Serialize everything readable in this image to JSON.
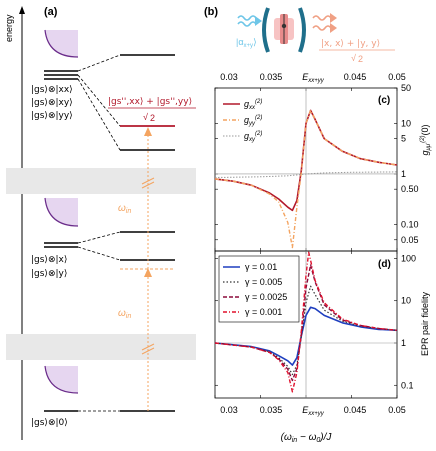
{
  "panel_a": {
    "label": "(a)",
    "axis_label": "energy",
    "omega_label": "ω",
    "omega_sub": "in",
    "states": {
      "xx": "|gs⟩⊗|xx⟩",
      "xy": "|gs⟩⊗|xy⟩",
      "yy": "|gs⟩⊗|yy⟩",
      "x": "|gs⟩⊗|x⟩",
      "y": "|gs⟩⊗|y⟩",
      "zero": "|gs⟩⊗|0⟩"
    },
    "bell_numerator": "|gs'',xx⟩ + |gs'',yy⟩",
    "bell_denominator": "2"
  },
  "panel_b": {
    "label": "(b)",
    "input_state": "|α",
    "input_sub": "x+y",
    "output_numerator": "|x, x⟩ + |y, y⟩",
    "output_denominator": "2"
  },
  "colors": {
    "red": "#b2182b",
    "orange": "#f4a460",
    "blue": "#1f3fbf",
    "grey": "#e8e8e8",
    "lavender": "#e6d6f0",
    "purple": "#6a2c8a"
  },
  "top_axis": {
    "ticks": [
      "0.03",
      "0.035",
      "0.045",
      "0.05"
    ],
    "marker_label": "E",
    "marker_sub": "xx+yy",
    "marker_value": 0.04
  },
  "bottom_axis": {
    "ticks": [
      "0.03",
      "0.035",
      "0.045",
      "0.05"
    ],
    "marker_label": "E",
    "marker_sub": "xx+yy",
    "xlabel": "(ω",
    "xlabel_sub": "in",
    "xlabel_rest": " − ω",
    "xlabel_sub2": "0",
    "xlabel_tail": ")/J"
  },
  "panel_c": {
    "label": "(c)",
    "ylabel": "g",
    "ylabel_sub": "μμ'",
    "ylabel_sup": "(2)",
    "ylabel_tail": "(0)",
    "yticks": [
      "50",
      "10",
      "5",
      "1",
      "0.50",
      "0.10",
      "0.05"
    ],
    "legend": [
      {
        "name": "g",
        "sub": "xx",
        "sup": "(2)"
      },
      {
        "name": "g",
        "sub": "yy",
        "sup": "(2)"
      },
      {
        "name": "g",
        "sub": "xy",
        "sup": "(2)"
      }
    ]
  },
  "panel_d": {
    "label": "(d)",
    "ylabel": "EPR pair fidelity",
    "yticks": [
      "100",
      "10",
      "1",
      "0.1"
    ],
    "legend": [
      {
        "label": "γ = 0.01"
      },
      {
        "label": "γ = 0.005"
      },
      {
        "label": "γ = 0.0025"
      },
      {
        "label": "γ = 0.001"
      }
    ]
  },
  "chart_data": [
    {
      "type": "line",
      "panel": "(c)",
      "xlim": [
        0.03,
        0.05
      ],
      "ylim": [
        0.03,
        50
      ],
      "yscale": "log",
      "ylabel": "g(2)μμ'(0)",
      "series": [
        {
          "name": "g(2)xx",
          "x": [
            0.03,
            0.032,
            0.034,
            0.036,
            0.037,
            0.038,
            0.0385,
            0.039,
            0.0395,
            0.04,
            0.0405,
            0.041,
            0.042,
            0.044,
            0.046,
            0.048,
            0.05
          ],
          "y": [
            0.8,
            0.72,
            0.6,
            0.42,
            0.32,
            0.22,
            0.19,
            0.3,
            1.2,
            10,
            18,
            12,
            5,
            2.8,
            2.0,
            1.7,
            1.5
          ]
        },
        {
          "name": "g(2)yy",
          "x": [
            0.03,
            0.032,
            0.034,
            0.036,
            0.037,
            0.038,
            0.0385,
            0.039,
            0.0395,
            0.04,
            0.0405,
            0.041,
            0.042,
            0.044,
            0.046,
            0.048,
            0.05
          ],
          "y": [
            0.8,
            0.72,
            0.6,
            0.4,
            0.28,
            0.11,
            0.035,
            0.22,
            1.1,
            10,
            18,
            12,
            5,
            2.8,
            2.0,
            1.7,
            1.5
          ]
        },
        {
          "name": "g(2)xy",
          "x": [
            0.03,
            0.035,
            0.038,
            0.04,
            0.042,
            0.045,
            0.05
          ],
          "y": [
            0.85,
            0.88,
            0.92,
            1.0,
            1.05,
            1.08,
            1.1
          ]
        }
      ]
    },
    {
      "type": "line",
      "panel": "(d)",
      "xlim": [
        0.03,
        0.05
      ],
      "ylim": [
        0.05,
        150
      ],
      "yscale": "log",
      "ylabel": "EPR pair fidelity",
      "series": [
        {
          "name": "γ = 0.01",
          "x": [
            0.03,
            0.034,
            0.036,
            0.037,
            0.038,
            0.0385,
            0.039,
            0.0395,
            0.04,
            0.0405,
            0.041,
            0.042,
            0.044,
            0.046,
            0.048,
            0.05
          ],
          "y": [
            1.0,
            0.82,
            0.65,
            0.5,
            0.38,
            0.3,
            0.45,
            1.5,
            4.5,
            7.0,
            6.5,
            4.5,
            3.0,
            2.4,
            2.1,
            2.0
          ]
        },
        {
          "name": "γ = 0.005",
          "x": [
            0.03,
            0.034,
            0.036,
            0.037,
            0.038,
            0.0385,
            0.039,
            0.0395,
            0.04,
            0.0405,
            0.041,
            0.042,
            0.044,
            0.046,
            0.048,
            0.05
          ],
          "y": [
            1.0,
            0.8,
            0.62,
            0.45,
            0.28,
            0.18,
            0.3,
            1.5,
            9,
            22,
            14,
            6,
            3.3,
            2.5,
            2.2,
            2.0
          ]
        },
        {
          "name": "γ = 0.0025",
          "x": [
            0.03,
            0.034,
            0.036,
            0.037,
            0.038,
            0.0385,
            0.039,
            0.0395,
            0.04,
            0.0405,
            0.041,
            0.042,
            0.044,
            0.046,
            0.048,
            0.05
          ],
          "y": [
            1.0,
            0.8,
            0.6,
            0.42,
            0.24,
            0.13,
            0.25,
            1.6,
            20,
            70,
            28,
            8,
            3.5,
            2.6,
            2.2,
            2.0
          ]
        },
        {
          "name": "γ = 0.001",
          "x": [
            0.03,
            0.034,
            0.036,
            0.037,
            0.038,
            0.0385,
            0.039,
            0.0395,
            0.04,
            0.0403,
            0.0405,
            0.041,
            0.042,
            0.044,
            0.046,
            0.048,
            0.05
          ],
          "y": [
            1.0,
            0.8,
            0.6,
            0.4,
            0.2,
            0.07,
            0.2,
            2.0,
            40,
            140,
            90,
            30,
            9,
            3.7,
            2.6,
            2.2,
            2.0
          ]
        }
      ]
    }
  ]
}
